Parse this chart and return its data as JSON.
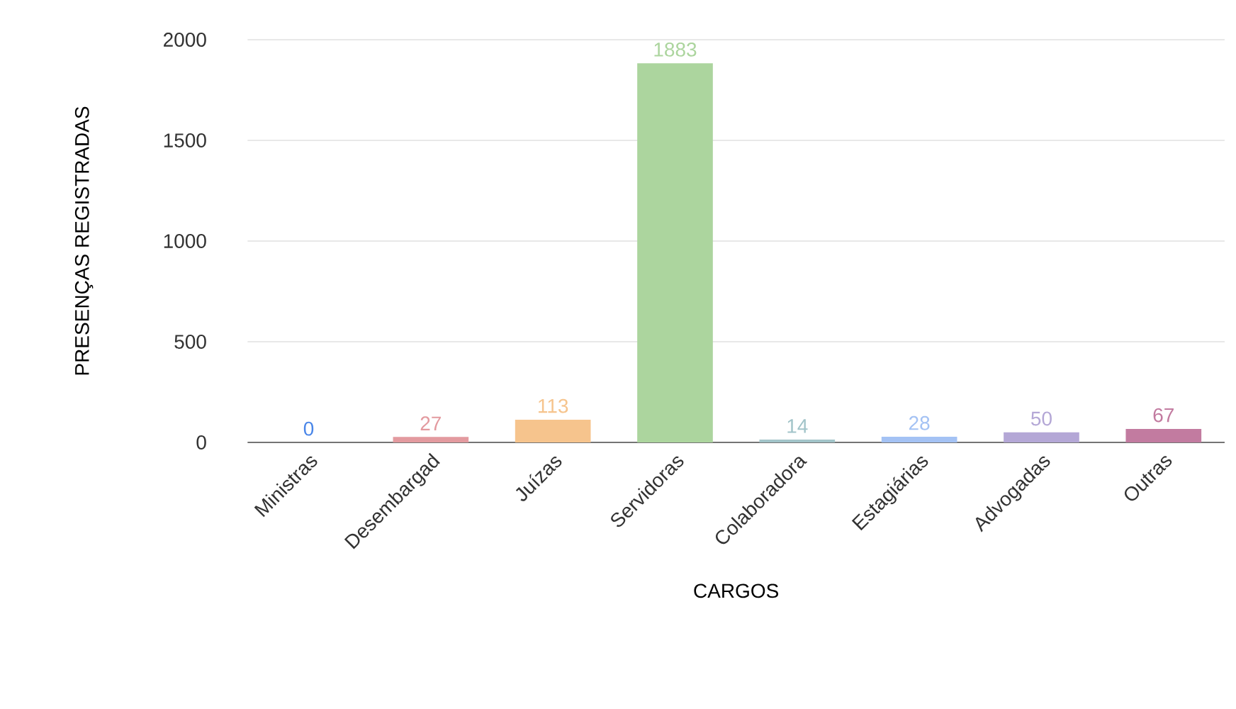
{
  "chart_data": {
    "type": "bar",
    "xlabel": "CARGOS",
    "ylabel": "PRESENÇAS REGISTRADAS",
    "categories": [
      "Ministras",
      "Desembargad",
      "Juízas",
      "Servidoras",
      "Colaboradora",
      "Estagiárias",
      "Advogadas",
      "Outras"
    ],
    "values": [
      0,
      27,
      113,
      1883,
      14,
      28,
      50,
      67
    ],
    "colors": [
      "#4a86e8",
      "#e39a9f",
      "#f6c48d",
      "#acd59e",
      "#a2c4c9",
      "#a4c2f4",
      "#b4a7d6",
      "#c27ba0"
    ],
    "ylim": [
      0,
      2000
    ],
    "yticks": [
      0,
      500,
      1000,
      1500,
      2000
    ],
    "grid": "y",
    "data_labels": true
  }
}
